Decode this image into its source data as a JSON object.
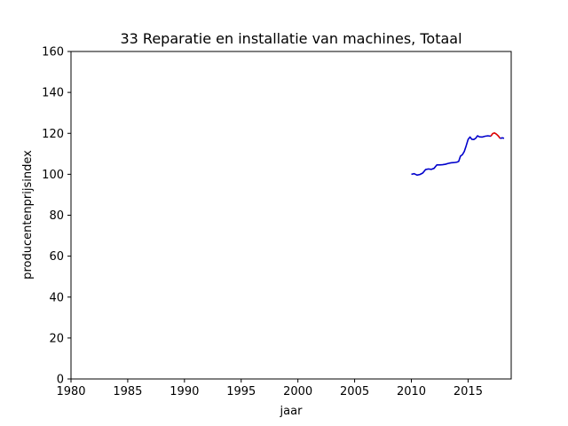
{
  "chart_data": {
    "type": "line",
    "title": "33 Reparatie en installatie van machines, Totaal",
    "xlabel": "jaar",
    "ylabel": "producentenprijsindex",
    "xlim": [
      1980,
      2018.8
    ],
    "ylim": [
      0,
      160
    ],
    "xticks": [
      1980,
      1985,
      1990,
      1995,
      2000,
      2005,
      2010,
      2015
    ],
    "yticks": [
      0,
      20,
      40,
      60,
      80,
      100,
      120,
      140,
      160
    ],
    "grid": false,
    "series": [
      {
        "color": "#0000cc",
        "x": [
          2010.0,
          2010.25,
          2010.5,
          2010.75,
          2011.0,
          2011.25,
          2011.5,
          2011.75,
          2012.0,
          2012.25,
          2012.5,
          2012.75,
          2013.0,
          2013.25,
          2013.5,
          2013.75,
          2014.0,
          2014.17,
          2014.33,
          2014.5,
          2014.67,
          2014.83,
          2015.0,
          2015.17,
          2015.33,
          2015.5,
          2015.67,
          2015.83,
          2016.0,
          2016.25,
          2016.5,
          2016.75,
          2017.0
        ],
        "y": [
          100.0,
          100.3,
          99.6,
          99.9,
          100.6,
          102.3,
          102.6,
          102.4,
          102.9,
          104.6,
          104.6,
          104.7,
          104.9,
          105.3,
          105.6,
          105.7,
          105.9,
          106.3,
          108.9,
          109.6,
          111.2,
          113.9,
          117.0,
          118.2,
          117.1,
          117.0,
          117.6,
          118.8,
          118.3,
          118.2,
          118.6,
          118.8,
          118.6
        ]
      },
      {
        "color": "#dd0000",
        "x": [
          2017.0,
          2017.17,
          2017.33,
          2017.5,
          2017.67,
          2017.83
        ],
        "y": [
          118.6,
          119.9,
          120.2,
          119.6,
          118.7,
          117.5
        ]
      },
      {
        "color": "#0000cc",
        "x": [
          2017.83,
          2018.0,
          2018.17
        ],
        "y": [
          117.5,
          117.8,
          117.6
        ]
      }
    ]
  }
}
